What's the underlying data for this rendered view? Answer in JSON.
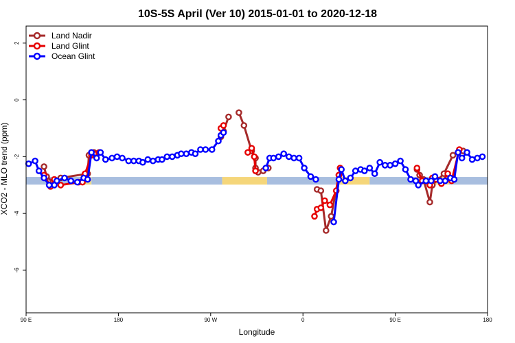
{
  "chart_data": {
    "type": "line",
    "title": "10S-5S April (Ver 10)   2015-01-01 to 2020-12-18",
    "xlabel": "Longitude",
    "ylabel": "XCO2 - MLO trend (ppm)",
    "xlim": [
      0,
      360
    ],
    "ylim": [
      -7.5,
      2.6
    ],
    "x_ticks": [
      {
        "value": 0,
        "label": "90 E"
      },
      {
        "value": 72,
        "label": "180"
      },
      {
        "value": 144,
        "label": "90 W"
      },
      {
        "value": 216,
        "label": "0"
      },
      {
        "value": 288,
        "label": "90 E"
      },
      {
        "value": 360,
        "label": "180"
      }
    ],
    "y_ticks": [
      {
        "value": 2,
        "label": "2"
      },
      {
        "value": 0,
        "label": "0"
      },
      {
        "value": -2,
        "label": "-2"
      },
      {
        "value": -4,
        "label": "-4"
      },
      {
        "value": -6,
        "label": "-6"
      }
    ],
    "legend_position": "top-left",
    "surface_band": {
      "y_center": -2.85,
      "segments": [
        {
          "from": 0,
          "to": 46,
          "kind": "ocean",
          "color": "#a8bedf"
        },
        {
          "from": 46,
          "to": 51,
          "kind": "land",
          "color": "#ead88a"
        },
        {
          "from": 51,
          "to": 153,
          "kind": "ocean",
          "color": "#a8bedf"
        },
        {
          "from": 153,
          "to": 188,
          "kind": "land",
          "color": "#f5d67a"
        },
        {
          "from": 188,
          "to": 245,
          "kind": "ocean",
          "color": "#a8bedf"
        },
        {
          "from": 245,
          "to": 268,
          "kind": "land",
          "color": "#f5d67a"
        },
        {
          "from": 268,
          "to": 318,
          "kind": "ocean",
          "color": "#a8bedf"
        },
        {
          "from": 318,
          "to": 330,
          "kind": "land",
          "color": "#ead88a"
        },
        {
          "from": 330,
          "to": 360,
          "kind": "ocean",
          "color": "#a8bedf"
        }
      ]
    },
    "series": [
      {
        "name": "Land Nadir",
        "color": "#a52a2a",
        "segments": [
          [
            [
              14,
              -2.35
            ],
            [
              16,
              -2.7
            ],
            [
              21,
              -2.9
            ],
            [
              27,
              -2.75
            ],
            [
              48,
              -2.6
            ],
            [
              49,
              -1.95
            ],
            [
              53,
              -1.85
            ]
          ],
          [
            [
              152,
              -1.3
            ],
            [
              154,
              -1.1
            ],
            [
              158,
              -0.6
            ]
          ],
          [
            [
              166,
              -0.45
            ],
            [
              170,
              -0.9
            ],
            [
              176,
              -1.8
            ],
            [
              179,
              -2.05
            ],
            [
              179,
              -2.4
            ],
            [
              181,
              -2.55
            ],
            [
              185,
              -2.5
            ],
            [
              189,
              -2.4
            ]
          ],
          [
            [
              227,
              -3.15
            ],
            [
              230,
              -3.2
            ],
            [
              234,
              -4.6
            ],
            [
              238,
              -4.1
            ],
            [
              244,
              -2.65
            ]
          ],
          [
            [
              305,
              -2.45
            ],
            [
              307,
              -2.65
            ],
            [
              310,
              -2.8
            ],
            [
              315,
              -3.6
            ],
            [
              317,
              -3.0
            ],
            [
              326,
              -2.6
            ],
            [
              333,
              -1.95
            ],
            [
              341,
              -1.8
            ]
          ]
        ]
      },
      {
        "name": "Land Glint",
        "color": "#e60000",
        "segments": [
          [
            [
              14,
              -2.65
            ],
            [
              19,
              -3.05
            ],
            [
              22,
              -2.8
            ],
            [
              27,
              -3.0
            ],
            [
              41,
              -2.9
            ],
            [
              44,
              -2.9
            ],
            [
              46,
              -2.6
            ],
            [
              51,
              -1.95
            ],
            [
              53,
              -1.9
            ],
            [
              57,
              -1.85
            ]
          ],
          [
            [
              152,
              -1.0
            ],
            [
              154,
              -0.9
            ]
          ],
          [
            [
              173,
              -1.85
            ],
            [
              176,
              -1.7
            ],
            [
              178,
              -2.0
            ],
            [
              179,
              -2.5
            ]
          ],
          [
            [
              225,
              -4.1
            ],
            [
              227,
              -3.85
            ],
            [
              230,
              -3.8
            ],
            [
              233,
              -3.55
            ],
            [
              237,
              -3.7
            ],
            [
              242,
              -3.2
            ],
            [
              244,
              -2.65
            ],
            [
              245,
              -2.4
            ]
          ],
          [
            [
              305,
              -2.4
            ],
            [
              309,
              -2.85
            ],
            [
              315,
              -3.0
            ],
            [
              317,
              -2.75
            ],
            [
              320,
              -2.8
            ],
            [
              324,
              -2.95
            ],
            [
              329,
              -2.6
            ],
            [
              332,
              -2.85
            ],
            [
              338,
              -1.75
            ]
          ]
        ]
      },
      {
        "name": "Ocean Glint",
        "color": "#0000ff",
        "segments": [
          [
            [
              2,
              -2.25
            ],
            [
              7,
              -2.15
            ],
            [
              10,
              -2.5
            ],
            [
              14,
              -2.75
            ],
            [
              18,
              -3.0
            ],
            [
              22,
              -3.0
            ],
            [
              24,
              -2.85
            ],
            [
              30,
              -2.75
            ],
            [
              35,
              -2.85
            ],
            [
              40,
              -2.9
            ],
            [
              45,
              -2.75
            ],
            [
              48,
              -2.8
            ],
            [
              51,
              -1.85
            ],
            [
              55,
              -2.05
            ],
            [
              58,
              -1.85
            ],
            [
              62,
              -2.1
            ],
            [
              67,
              -2.05
            ],
            [
              71,
              -2.0
            ],
            [
              75,
              -2.05
            ],
            [
              80,
              -2.15
            ],
            [
              84,
              -2.15
            ],
            [
              88,
              -2.15
            ],
            [
              91,
              -2.2
            ],
            [
              95,
              -2.1
            ],
            [
              99,
              -2.15
            ],
            [
              103,
              -2.1
            ],
            [
              106,
              -2.1
            ],
            [
              110,
              -2.0
            ],
            [
              114,
              -2.0
            ],
            [
              118,
              -1.95
            ],
            [
              121,
              -1.9
            ],
            [
              125,
              -1.9
            ],
            [
              129,
              -1.85
            ],
            [
              132,
              -1.9
            ],
            [
              136,
              -1.75
            ],
            [
              140,
              -1.75
            ],
            [
              145,
              -1.75
            ],
            [
              150,
              -1.45
            ],
            [
              152,
              -1.25
            ],
            [
              154,
              -1.15
            ]
          ],
          [
            [
              187,
              -2.4
            ],
            [
              190,
              -2.05
            ],
            [
              193,
              -2.05
            ],
            [
              197,
              -2.0
            ],
            [
              201,
              -1.9
            ],
            [
              205,
              -2.0
            ],
            [
              209,
              -2.05
            ],
            [
              213,
              -2.05
            ],
            [
              217,
              -2.4
            ],
            [
              222,
              -2.7
            ],
            [
              226,
              -2.8
            ]
          ],
          [
            [
              240,
              -4.3
            ],
            [
              244,
              -2.8
            ],
            [
              246,
              -2.45
            ],
            [
              249,
              -2.85
            ],
            [
              253,
              -2.75
            ],
            [
              257,
              -2.5
            ],
            [
              261,
              -2.45
            ],
            [
              264,
              -2.5
            ],
            [
              268,
              -2.4
            ],
            [
              272,
              -2.6
            ],
            [
              276,
              -2.2
            ],
            [
              280,
              -2.3
            ],
            [
              284,
              -2.3
            ],
            [
              288,
              -2.25
            ],
            [
              292,
              -2.15
            ],
            [
              296,
              -2.45
            ],
            [
              300,
              -2.8
            ],
            [
              304,
              -2.85
            ],
            [
              306,
              -3.0
            ],
            [
              312,
              -2.85
            ],
            [
              316,
              -2.85
            ],
            [
              319,
              -2.7
            ],
            [
              323,
              -2.85
            ],
            [
              327,
              -2.85
            ],
            [
              331,
              -2.75
            ],
            [
              334,
              -2.8
            ],
            [
              337,
              -1.85
            ],
            [
              340,
              -2.05
            ],
            [
              344,
              -1.85
            ],
            [
              348,
              -2.1
            ],
            [
              352,
              -2.05
            ],
            [
              356,
              -2.0
            ]
          ]
        ]
      }
    ]
  }
}
